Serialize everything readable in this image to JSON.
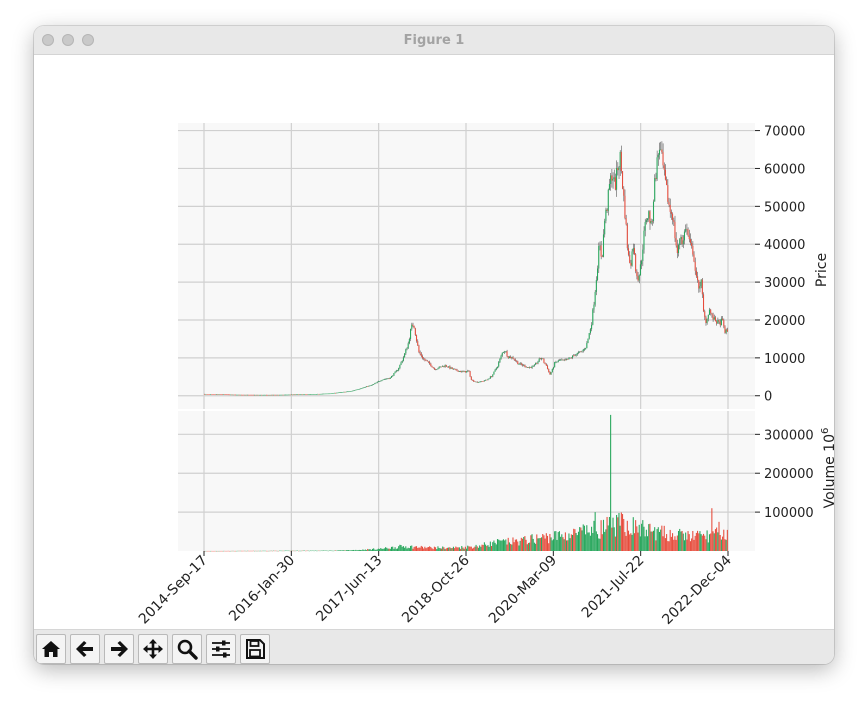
{
  "window": {
    "title": "Figure 1"
  },
  "toolbar": {
    "tools": [
      {
        "name": "home-icon",
        "icon": "home"
      },
      {
        "name": "back-arrow-icon",
        "icon": "arrow-left"
      },
      {
        "name": "forward-arrow-icon",
        "icon": "arrow-right"
      },
      {
        "name": "pan-icon",
        "icon": "move"
      },
      {
        "name": "zoom-icon",
        "icon": "magnifier"
      },
      {
        "name": "configure-subplots-icon",
        "icon": "sliders"
      },
      {
        "name": "save-icon",
        "icon": "floppy-disk"
      }
    ]
  },
  "chart_data": [
    {
      "type": "candlestick",
      "ylabel": "Price",
      "ylim": [
        -3500,
        72000
      ],
      "yticks": [
        0,
        10000,
        20000,
        30000,
        40000,
        50000,
        60000,
        70000
      ],
      "xticks": [
        "2014-Sep-17",
        "2016-Jan-30",
        "2017-Jun-13",
        "2018-Oct-26",
        "2020-Mar-09",
        "2021-Jul-22",
        "2022-Dec-04"
      ],
      "grid": true,
      "up_color": "#26a65b",
      "down_color": "#e74c3c",
      "close_keypoints": [
        [
          0,
          460
        ],
        [
          0.03,
          380
        ],
        [
          0.06,
          270
        ],
        [
          0.09,
          240
        ],
        [
          0.12,
          230
        ],
        [
          0.15,
          260
        ],
        [
          0.18,
          370
        ],
        [
          0.21,
          420
        ],
        [
          0.24,
          600
        ],
        [
          0.26,
          900
        ],
        [
          0.28,
          1200
        ],
        [
          0.3,
          2000
        ],
        [
          0.32,
          2800
        ],
        [
          0.34,
          4300
        ],
        [
          0.355,
          4700
        ],
        [
          0.37,
          7000
        ],
        [
          0.38,
          10000
        ],
        [
          0.39,
          14000
        ],
        [
          0.395,
          18000
        ],
        [
          0.4,
          19000
        ],
        [
          0.405,
          15000
        ],
        [
          0.41,
          11500
        ],
        [
          0.42,
          9500
        ],
        [
          0.43,
          8500
        ],
        [
          0.44,
          7000
        ],
        [
          0.45,
          7500
        ],
        [
          0.46,
          8000
        ],
        [
          0.47,
          7300
        ],
        [
          0.48,
          6700
        ],
        [
          0.49,
          6400
        ],
        [
          0.5,
          6300
        ],
        [
          0.505,
          6600
        ],
        [
          0.51,
          4200
        ],
        [
          0.52,
          3600
        ],
        [
          0.53,
          3800
        ],
        [
          0.54,
          4200
        ],
        [
          0.55,
          5300
        ],
        [
          0.56,
          7800
        ],
        [
          0.57,
          11500
        ],
        [
          0.575,
          12000
        ],
        [
          0.58,
          10300
        ],
        [
          0.59,
          10000
        ],
        [
          0.6,
          8500
        ],
        [
          0.61,
          8000
        ],
        [
          0.62,
          7400
        ],
        [
          0.63,
          7800
        ],
        [
          0.64,
          9500
        ],
        [
          0.645,
          10000
        ],
        [
          0.65,
          8600
        ],
        [
          0.655,
          7700
        ],
        [
          0.66,
          5500
        ],
        [
          0.665,
          6800
        ],
        [
          0.67,
          8700
        ],
        [
          0.68,
          9400
        ],
        [
          0.69,
          9200
        ],
        [
          0.7,
          10000
        ],
        [
          0.71,
          11000
        ],
        [
          0.72,
          11500
        ],
        [
          0.73,
          13000
        ],
        [
          0.735,
          16000
        ],
        [
          0.74,
          19000
        ],
        [
          0.745,
          25000
        ],
        [
          0.75,
          32000
        ],
        [
          0.755,
          40000
        ],
        [
          0.76,
          36000
        ],
        [
          0.765,
          46000
        ],
        [
          0.77,
          50000
        ],
        [
          0.775,
          56000
        ],
        [
          0.78,
          59000
        ],
        [
          0.785,
          55000
        ],
        [
          0.79,
          60000
        ],
        [
          0.795,
          63000
        ],
        [
          0.8,
          55000
        ],
        [
          0.805,
          47000
        ],
        [
          0.81,
          37000
        ],
        [
          0.815,
          35000
        ],
        [
          0.82,
          40000
        ],
        [
          0.825,
          33000
        ],
        [
          0.83,
          31000
        ],
        [
          0.835,
          35000
        ],
        [
          0.84,
          42000
        ],
        [
          0.845,
          47000
        ],
        [
          0.85,
          48000
        ],
        [
          0.855,
          44000
        ],
        [
          0.86,
          55000
        ],
        [
          0.865,
          61000
        ],
        [
          0.87,
          66000
        ],
        [
          0.875,
          62000
        ],
        [
          0.88,
          57000
        ],
        [
          0.885,
          53000
        ],
        [
          0.89,
          49000
        ],
        [
          0.895,
          48000
        ],
        [
          0.9,
          42000
        ],
        [
          0.905,
          37000
        ],
        [
          0.91,
          43000
        ],
        [
          0.915,
          40000
        ],
        [
          0.92,
          45000
        ],
        [
          0.925,
          42000
        ],
        [
          0.93,
          39000
        ],
        [
          0.935,
          38000
        ],
        [
          0.94,
          31000
        ],
        [
          0.945,
          29000
        ],
        [
          0.95,
          30000
        ],
        [
          0.955,
          21000
        ],
        [
          0.96,
          19500
        ],
        [
          0.965,
          23000
        ],
        [
          0.97,
          21000
        ],
        [
          0.975,
          20000
        ],
        [
          0.98,
          19500
        ],
        [
          0.985,
          19000
        ],
        [
          0.99,
          20000
        ],
        [
          0.995,
          17000
        ],
        [
          1.0,
          16900
        ]
      ]
    },
    {
      "type": "bar",
      "ylabel": "Volume  10^6",
      "ylim": [
        0,
        360000
      ],
      "yticks": [
        100000,
        200000,
        300000
      ],
      "grid": true,
      "volume_keypoints": [
        [
          0,
          100
        ],
        [
          0.25,
          1000
        ],
        [
          0.3,
          3000
        ],
        [
          0.34,
          6000
        ],
        [
          0.38,
          12000
        ],
        [
          0.42,
          9000
        ],
        [
          0.47,
          8000
        ],
        [
          0.52,
          12000
        ],
        [
          0.56,
          22000
        ],
        [
          0.6,
          25000
        ],
        [
          0.65,
          35000
        ],
        [
          0.7,
          42000
        ],
        [
          0.75,
          55000
        ],
        [
          0.78,
          65000
        ],
        [
          0.8,
          70000
        ],
        [
          0.85,
          52000
        ],
        [
          0.9,
          40000
        ],
        [
          0.95,
          38000
        ],
        [
          1.0,
          45000
        ]
      ],
      "spikes": [
        [
          0.776,
          350000
        ],
        [
          0.747,
          100000
        ],
        [
          0.8,
          95000
        ],
        [
          0.97,
          110000
        ],
        [
          0.983,
          75000
        ]
      ]
    }
  ]
}
